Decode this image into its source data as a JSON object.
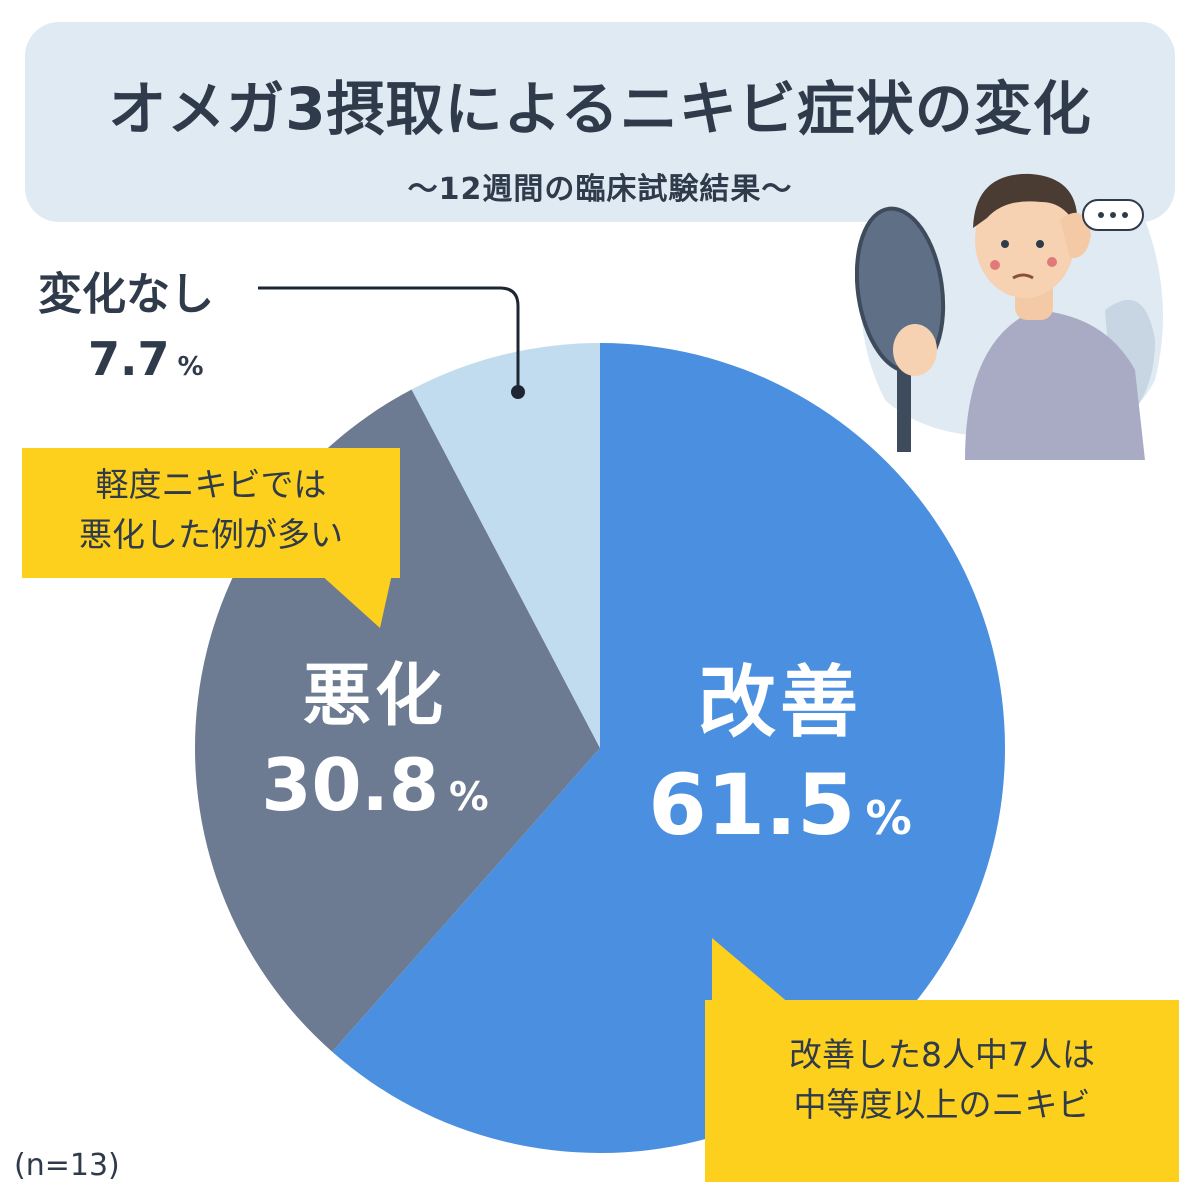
{
  "header": {
    "title": "オメガ3摂取によるニキビ症状の変化",
    "subtitle": "〜12週間の臨床試験結果〜"
  },
  "chart_data": {
    "type": "pie",
    "title": "オメガ3摂取によるニキビ症状の変化",
    "subtitle": "〜12週間の臨床試験結果〜",
    "unit": "%",
    "start_angle": "12 o'clock",
    "direction": "clockwise",
    "slices": [
      {
        "label": "改善",
        "value": 61.5,
        "color": "#4a8fe0",
        "label_color": "#ffffff"
      },
      {
        "label": "悪化",
        "value": 30.8,
        "color": "#6c7b92",
        "label_color": "#ffffff"
      },
      {
        "label": "変化なし",
        "value": 7.7,
        "color": "#c2dcef",
        "label_color": "#2f3a4b"
      }
    ],
    "annotations": [
      {
        "target": "悪化",
        "text": [
          "軽度ニキビでは",
          "悪化した例が多い"
        ]
      },
      {
        "target": "改善",
        "text": [
          "改善した8人中7人は",
          "中等度以上のニキビ"
        ]
      }
    ],
    "sample_size": "(n=13)"
  },
  "labels": {
    "percent_unit": "%"
  },
  "notes": {
    "worse_line1": "軽度ニキビでは",
    "worse_line2": "悪化した例が多い",
    "improve_line1": "改善した8人中7人は",
    "improve_line2": "中等度以上のニキビ"
  },
  "footer": {
    "sample_size": "(n=13)"
  },
  "illustration": {
    "icon": "man-with-hand-mirror-icon",
    "bubble_color": "#dfeaf3",
    "mirror_color": "#5f6f86",
    "sweater_color": "#a9aac4"
  }
}
